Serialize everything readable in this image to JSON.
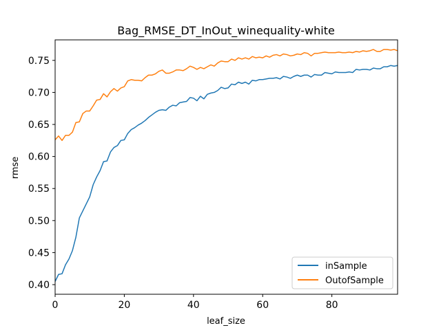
{
  "chart_data": {
    "type": "line",
    "title": "Bag_RMSE_DT_InOut_winequality-white",
    "xlabel": "leaf_size",
    "ylabel": "rmse",
    "xlim": [
      0,
      99
    ],
    "ylim": [
      0.385,
      0.782
    ],
    "xticks": [
      0,
      20,
      40,
      60,
      80
    ],
    "xtick_labels": [
      "0",
      "20",
      "40",
      "60",
      "80"
    ],
    "yticks": [
      0.4,
      0.45,
      0.5,
      0.55,
      0.6,
      0.65,
      0.7,
      0.75
    ],
    "ytick_labels": [
      "0.40",
      "0.45",
      "0.50",
      "0.55",
      "0.60",
      "0.65",
      "0.70",
      "0.75"
    ],
    "grid": false,
    "legend_position": "lower-right",
    "x": [
      0,
      1,
      2,
      3,
      4,
      5,
      6,
      7,
      8,
      9,
      10,
      11,
      12,
      13,
      14,
      15,
      16,
      17,
      18,
      19,
      20,
      21,
      22,
      23,
      24,
      25,
      26,
      27,
      28,
      29,
      30,
      31,
      32,
      33,
      34,
      35,
      36,
      37,
      38,
      39,
      40,
      41,
      42,
      43,
      44,
      45,
      46,
      47,
      48,
      49,
      50,
      51,
      52,
      53,
      54,
      55,
      56,
      57,
      58,
      59,
      60,
      61,
      62,
      63,
      64,
      65,
      66,
      67,
      68,
      69,
      70,
      71,
      72,
      73,
      74,
      75,
      76,
      77,
      78,
      79,
      80,
      81,
      82,
      83,
      84,
      85,
      86,
      87,
      88,
      89,
      90,
      91,
      92,
      93,
      94,
      95,
      96,
      97,
      98,
      99
    ],
    "series": [
      {
        "name": "inSample",
        "color": "#1f77b4",
        "values": [
          0.405,
          0.416,
          0.417,
          0.431,
          0.44,
          0.453,
          0.474,
          0.504,
          0.515,
          0.526,
          0.537,
          0.556,
          0.568,
          0.578,
          0.592,
          0.593,
          0.607,
          0.614,
          0.617,
          0.625,
          0.626,
          0.636,
          0.642,
          0.645,
          0.649,
          0.652,
          0.656,
          0.661,
          0.665,
          0.669,
          0.672,
          0.673,
          0.672,
          0.677,
          0.68,
          0.679,
          0.684,
          0.685,
          0.686,
          0.692,
          0.691,
          0.687,
          0.694,
          0.69,
          0.697,
          0.699,
          0.7,
          0.703,
          0.708,
          0.706,
          0.707,
          0.713,
          0.712,
          0.716,
          0.714,
          0.716,
          0.713,
          0.719,
          0.718,
          0.72,
          0.72,
          0.721,
          0.722,
          0.722,
          0.723,
          0.721,
          0.725,
          0.724,
          0.722,
          0.725,
          0.727,
          0.725,
          0.727,
          0.727,
          0.724,
          0.728,
          0.727,
          0.727,
          0.731,
          0.73,
          0.729,
          0.732,
          0.731,
          0.731,
          0.731,
          0.732,
          0.731,
          0.736,
          0.735,
          0.736,
          0.736,
          0.735,
          0.738,
          0.737,
          0.737,
          0.74,
          0.74,
          0.742,
          0.741,
          0.742
        ]
      },
      {
        "name": "OutofSample",
        "color": "#ff7f0e",
        "values": [
          0.626,
          0.632,
          0.625,
          0.633,
          0.633,
          0.638,
          0.653,
          0.654,
          0.667,
          0.671,
          0.671,
          0.679,
          0.688,
          0.689,
          0.698,
          0.693,
          0.701,
          0.706,
          0.702,
          0.707,
          0.709,
          0.718,
          0.72,
          0.719,
          0.719,
          0.718,
          0.723,
          0.727,
          0.727,
          0.729,
          0.733,
          0.735,
          0.73,
          0.73,
          0.732,
          0.735,
          0.735,
          0.734,
          0.737,
          0.741,
          0.739,
          0.736,
          0.739,
          0.737,
          0.74,
          0.743,
          0.741,
          0.746,
          0.749,
          0.748,
          0.748,
          0.752,
          0.75,
          0.754,
          0.752,
          0.754,
          0.752,
          0.756,
          0.754,
          0.755,
          0.754,
          0.757,
          0.755,
          0.758,
          0.759,
          0.757,
          0.76,
          0.759,
          0.757,
          0.758,
          0.76,
          0.759,
          0.762,
          0.761,
          0.757,
          0.761,
          0.761,
          0.762,
          0.763,
          0.762,
          0.762,
          0.762,
          0.763,
          0.762,
          0.762,
          0.763,
          0.762,
          0.764,
          0.763,
          0.765,
          0.764,
          0.765,
          0.767,
          0.764,
          0.764,
          0.767,
          0.767,
          0.766,
          0.767,
          0.765
        ]
      }
    ]
  }
}
